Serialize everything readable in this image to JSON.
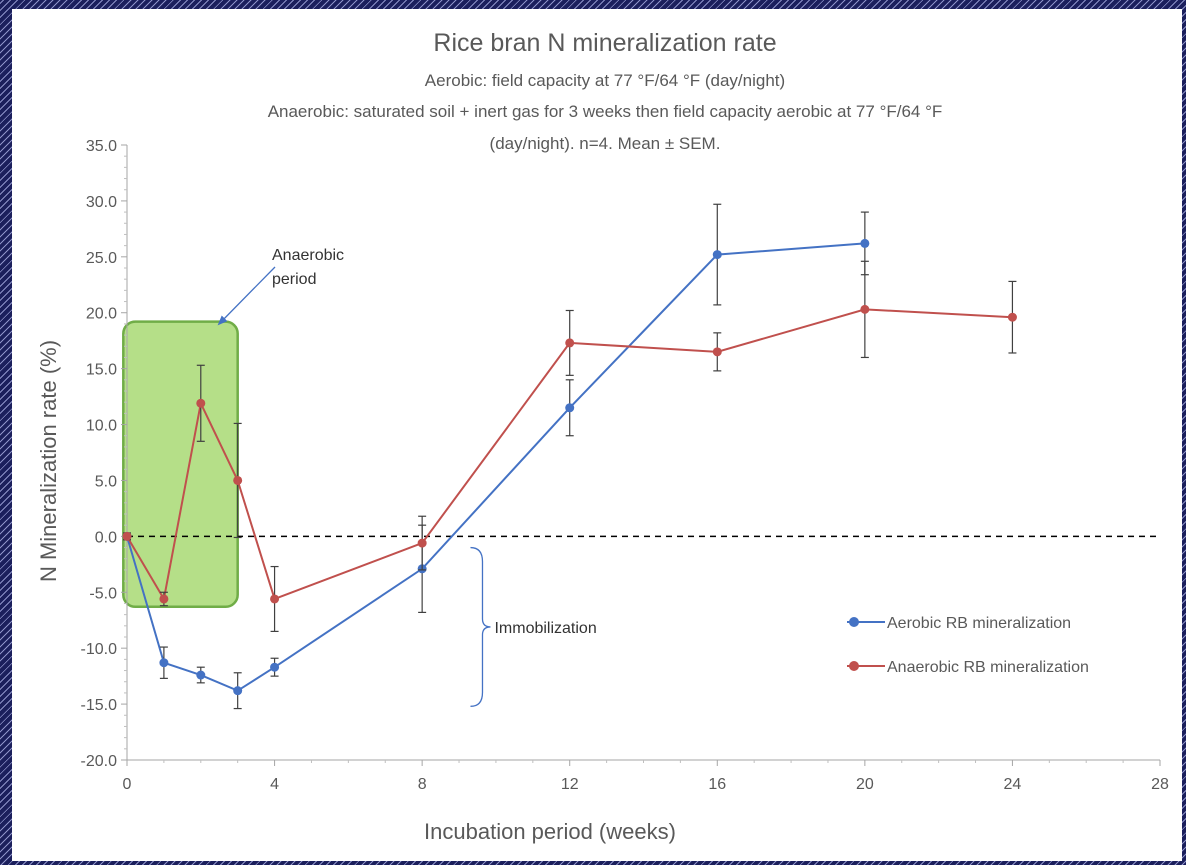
{
  "chart_data": {
    "type": "line",
    "title": "Rice bran N mineralization rate",
    "subtitle": [
      "Aerobic: field capacity at 77 °F/64 °F (day/night)",
      "Anaerobic: saturated soil + inert gas for 3 weeks then field capacity aerobic at 77 °F/64 °F",
      "(day/night). n=4. Mean ± SEM."
    ],
    "xlabel": "Incubation period (weeks)",
    "ylabel": "N Mineralization rate (%)",
    "xlim": [
      0,
      28
    ],
    "ylim": [
      -20,
      35
    ],
    "x_ticks": [
      "0",
      "4",
      "8",
      "12",
      "16",
      "20",
      "24",
      "28"
    ],
    "y_ticks": [
      "35.0",
      "30.0",
      "25.0",
      "20.0",
      "15.0",
      "10.0",
      "5.0",
      "0.0",
      "-5.0",
      "-10.0",
      "-15.0",
      "-20.0"
    ],
    "grid": false,
    "legend_position": "right",
    "series": [
      {
        "name": "Aerobic RB mineralization",
        "color": "#4472c4",
        "x": [
          0,
          1,
          2,
          3,
          4,
          8,
          12,
          16,
          20
        ],
        "y": [
          0,
          -11.3,
          -12.4,
          -13.8,
          -11.7,
          -2.9,
          11.5,
          25.2,
          26.2
        ],
        "err": [
          0.3,
          1.4,
          0.7,
          1.6,
          0.8,
          3.9,
          2.5,
          4.5,
          2.8
        ]
      },
      {
        "name": "Anaerobic RB mineralization",
        "color": "#c0504d",
        "x": [
          0,
          1,
          2,
          3,
          4,
          8,
          12,
          16,
          20,
          24
        ],
        "y": [
          0,
          -5.6,
          11.9,
          5.0,
          -5.6,
          -0.6,
          17.3,
          16.5,
          20.3,
          19.6
        ],
        "err": [
          0.3,
          0.6,
          3.4,
          5.1,
          2.9,
          2.4,
          2.9,
          1.7,
          4.3,
          3.2
        ]
      }
    ],
    "reference_line": {
      "y": 0,
      "style": "dashed"
    },
    "annotations": {
      "anaerobic_label": [
        "Anaerobic",
        "period"
      ],
      "anaerobic_box": {
        "x": [
          -0.1,
          3.0
        ],
        "y": [
          -6.3,
          19.2
        ],
        "fill": "#92d050"
      },
      "immobilization_label": "Immobilization",
      "immobilization_brace": {
        "x": 9.5,
        "y": [
          -15.2,
          -1.0
        ]
      }
    }
  }
}
